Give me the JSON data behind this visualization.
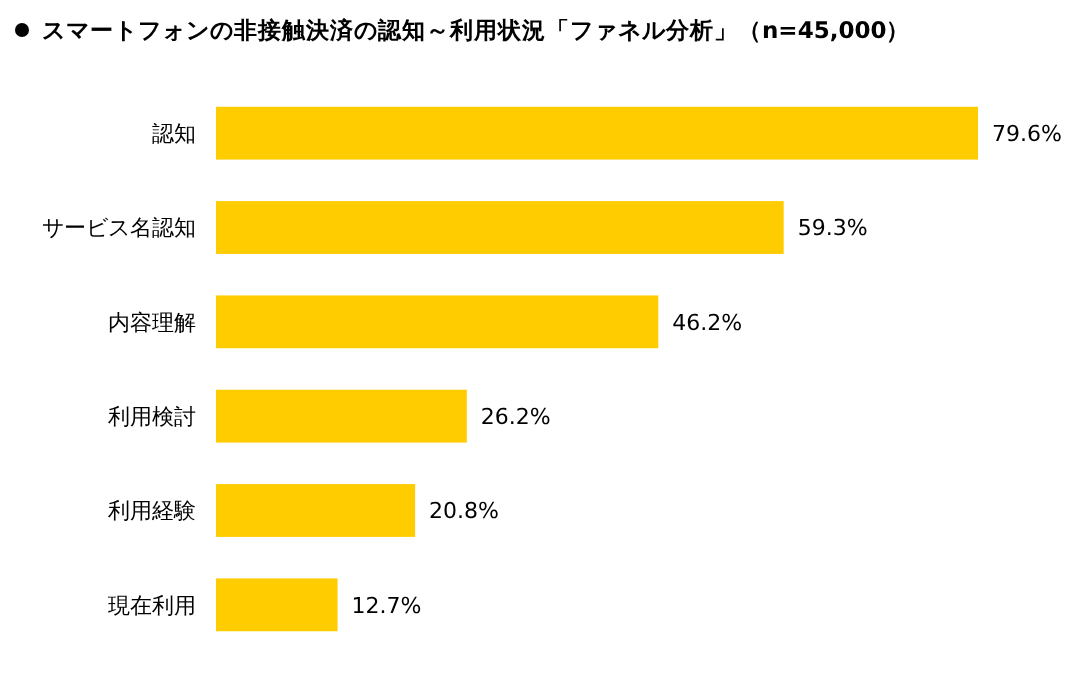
{
  "chart_data": {
    "type": "bar",
    "orientation": "horizontal",
    "title": "スマートフォンの非接触決済の認知～利用状況「ファネル分析」（n=45,000）",
    "categories": [
      "認知",
      "サービス名認知",
      "内容理解",
      "利用検討",
      "利用経験",
      "現在利用"
    ],
    "values": [
      79.6,
      59.3,
      46.2,
      26.2,
      20.8,
      12.7
    ],
    "value_labels": [
      "79.6%",
      "59.3%",
      "46.2%",
      "26.2%",
      "20.8%",
      "12.7%"
    ],
    "color": "#ffcc00"
  }
}
